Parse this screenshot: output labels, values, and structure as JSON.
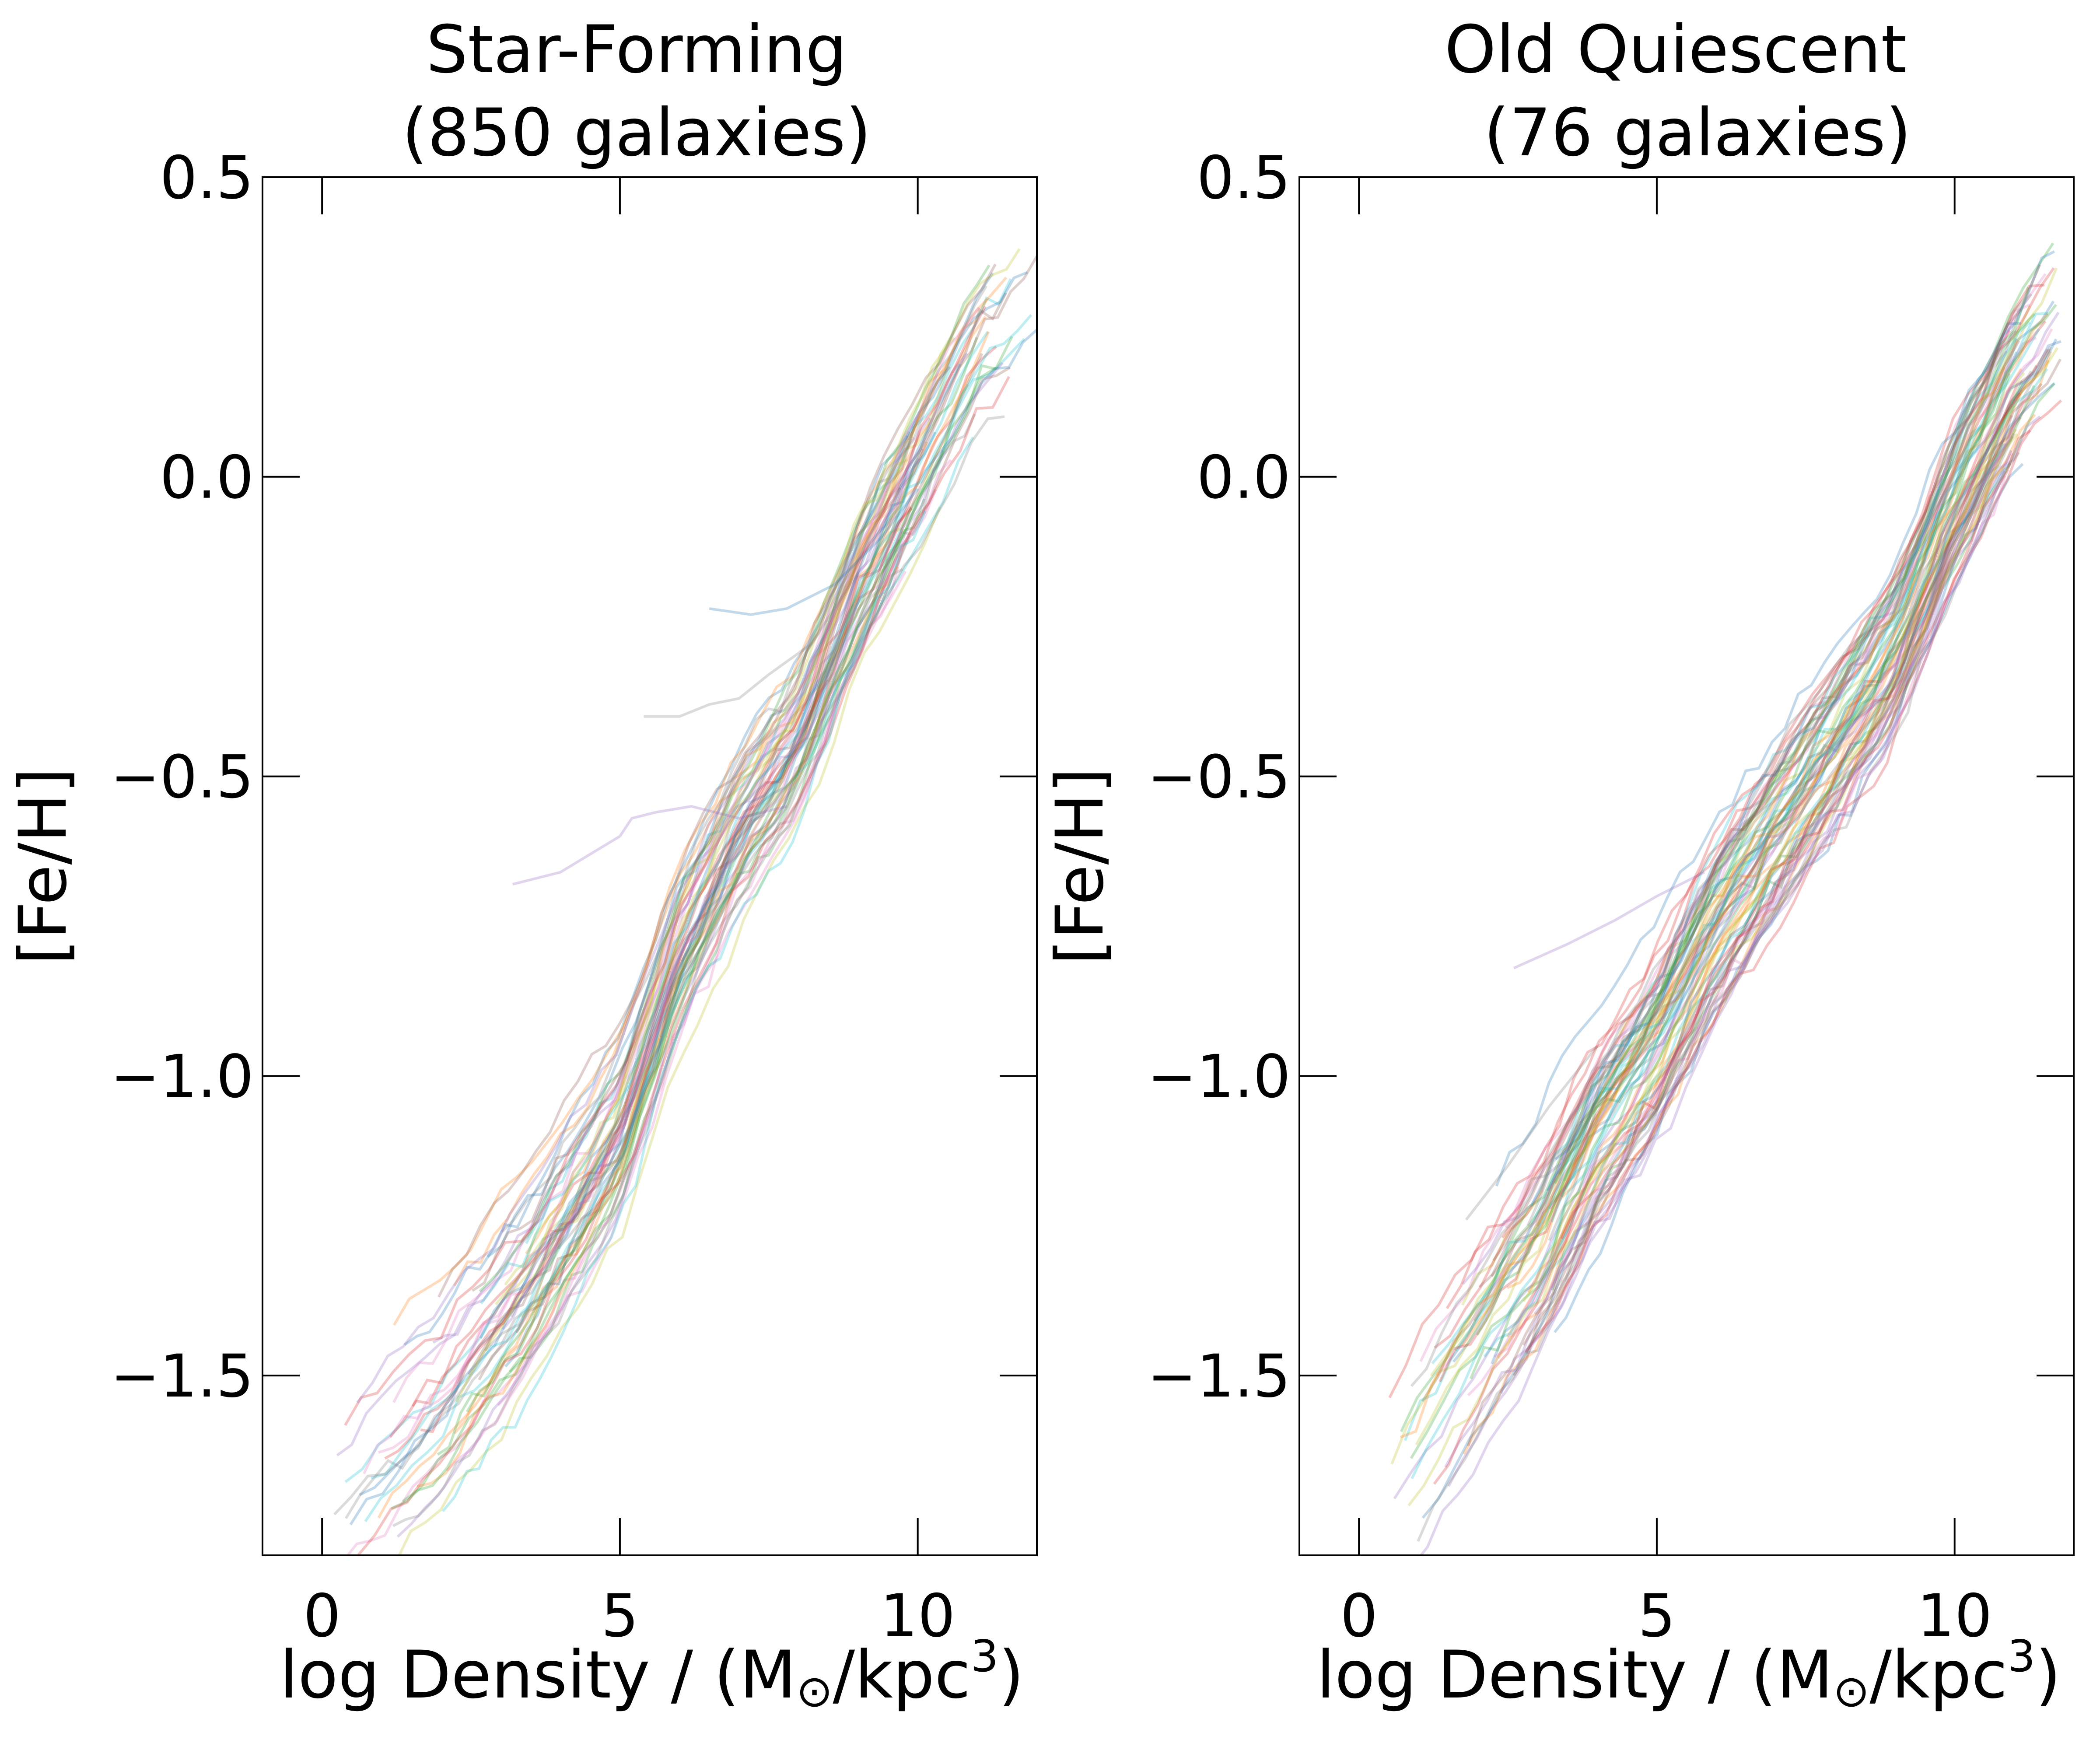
{
  "chart_data": [
    {
      "type": "line",
      "title": "Star-Forming",
      "subtitle": "(850 galaxies)",
      "xlabel": "log Density / (M",
      "xlabel_sub": "⊙",
      "xlabel_tail": "/kpc",
      "xlabel_sup": "3",
      "xlabel_close": ")",
      "ylabel": "[Fe/H]",
      "xlim": [
        -1,
        12
      ],
      "ylim": [
        -1.8,
        0.5
      ],
      "xticks": [
        0,
        5,
        10
      ],
      "xtick_labels": [
        "0",
        "5",
        "10"
      ],
      "yticks": [
        0.5,
        0.0,
        -0.5,
        -1.0,
        -1.5
      ],
      "ytick_labels": [
        "0.5",
        "0.0",
        "−0.5",
        "−1.0",
        "−1.5"
      ],
      "grid": false,
      "legend": "none",
      "series_alpha": 0.28,
      "series_count_drawn": 60,
      "trend_center": [
        [
          0,
          -1.75
        ],
        [
          2,
          -1.55
        ],
        [
          3.5,
          -1.35
        ],
        [
          5,
          -1.1
        ],
        [
          6,
          -0.8
        ],
        [
          7,
          -0.6
        ],
        [
          8,
          -0.45
        ],
        [
          9,
          -0.2
        ],
        [
          10,
          0.0
        ],
        [
          11,
          0.2
        ],
        [
          12,
          0.3
        ]
      ],
      "trend_spread": 0.12,
      "x_range_min": [
        0.2,
        4.0
      ],
      "x_range_max": [
        9.5,
        12.0
      ],
      "outlier_series": [
        {
          "x": [
            3.2,
            4.0,
            5.0,
            5.2,
            5.6,
            6.2,
            7.0,
            7.8
          ],
          "y": [
            -0.68,
            -0.66,
            -0.6,
            -0.57,
            -0.56,
            -0.55,
            -0.57,
            -0.55
          ]
        },
        {
          "x": [
            5.4,
            6.0,
            6.5,
            7.0,
            7.5,
            8.2,
            9.0
          ],
          "y": [
            -0.4,
            -0.4,
            -0.38,
            -0.37,
            -0.33,
            -0.28,
            -0.16
          ]
        },
        {
          "x": [
            6.5,
            7.2,
            7.8,
            8.6,
            9.4,
            10.0
          ],
          "y": [
            -0.22,
            -0.23,
            -0.22,
            -0.18,
            -0.1,
            -0.02
          ]
        }
      ],
      "colors": [
        "#1f77b4",
        "#ff7f0e",
        "#2ca02c",
        "#d62728",
        "#9467bd",
        "#8c564b",
        "#e377c2",
        "#7f7f7f",
        "#bcbd22",
        "#17becf"
      ]
    },
    {
      "type": "line",
      "title": "Old Quiescent",
      "subtitle": "(76 galaxies)",
      "xlabel": "log Density / (M",
      "xlabel_sub": "⊙",
      "xlabel_tail": "/kpc",
      "xlabel_sup": "3",
      "xlabel_close": ")",
      "ylabel": "[Fe/H]",
      "xlim": [
        -1,
        12
      ],
      "ylim": [
        -1.8,
        0.5
      ],
      "xticks": [
        0,
        5,
        10
      ],
      "xtick_labels": [
        "0",
        "5",
        "10"
      ],
      "yticks": [
        0.5,
        0.0,
        -0.5,
        -1.0,
        -1.5
      ],
      "ytick_labels": [
        "0.5",
        "0.0",
        "−0.5",
        "−1.0",
        "−1.5"
      ],
      "grid": false,
      "legend": "none",
      "series_alpha": 0.28,
      "series_count_drawn": 76,
      "trend_center": [
        [
          0.5,
          -1.7
        ],
        [
          2,
          -1.45
        ],
        [
          3,
          -1.3
        ],
        [
          4,
          -1.1
        ],
        [
          5,
          -0.95
        ],
        [
          6,
          -0.75
        ],
        [
          7,
          -0.6
        ],
        [
          8,
          -0.45
        ],
        [
          9,
          -0.3
        ],
        [
          10,
          -0.05
        ],
        [
          11,
          0.15
        ],
        [
          11.7,
          0.25
        ]
      ],
      "trend_spread": 0.13,
      "x_range_min": [
        0.5,
        3.5
      ],
      "x_range_max": [
        10.8,
        11.8
      ],
      "outlier_series": [
        {
          "x": [
            2.6,
            3.5,
            4.3,
            5.0,
            5.8
          ],
          "y": [
            -0.82,
            -0.78,
            -0.74,
            -0.7,
            -0.66
          ]
        },
        {
          "x": [
            1.8,
            2.5,
            3.2,
            4.0
          ],
          "y": [
            -1.24,
            -1.15,
            -1.05,
            -0.95
          ]
        }
      ],
      "colors": [
        "#1f77b4",
        "#ff7f0e",
        "#2ca02c",
        "#d62728",
        "#9467bd",
        "#8c564b",
        "#e377c2",
        "#7f7f7f",
        "#bcbd22",
        "#17becf"
      ]
    }
  ]
}
